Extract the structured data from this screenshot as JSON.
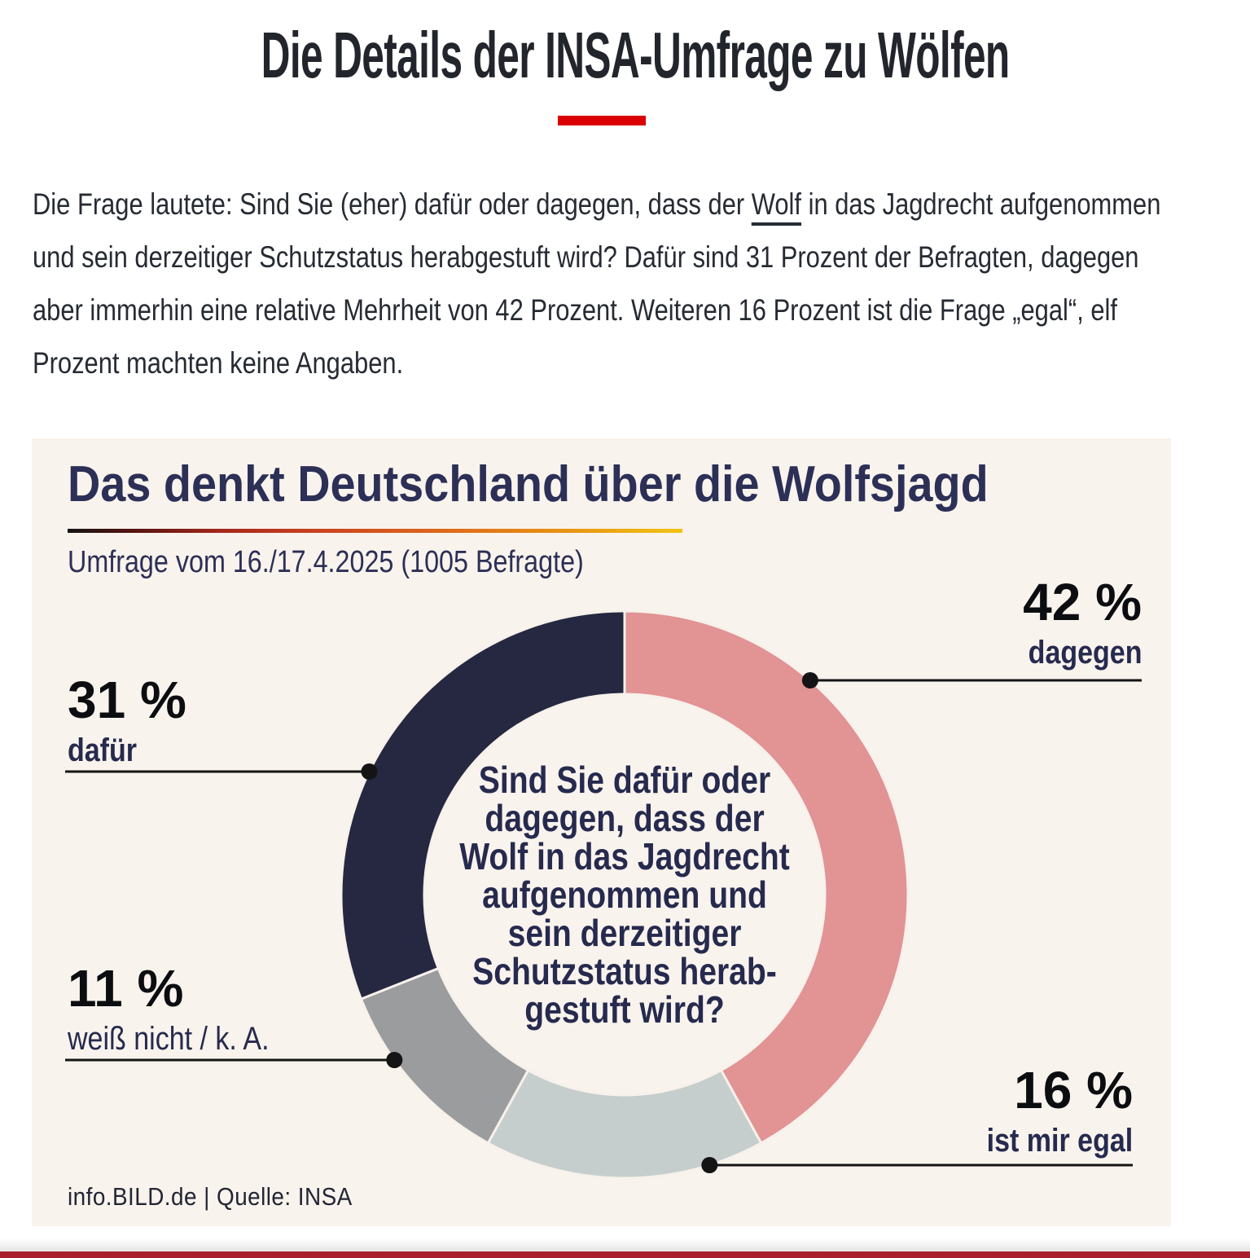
{
  "page": {
    "headline": "Die Details der INSA-Umfrage zu Wölfen",
    "accent_color": "#db0000",
    "bottom_line_color": "#a81e2d",
    "intro": {
      "text_before_link": "Die Frage lautete: Sind Sie (eher) dafür oder dagegen, dass der ",
      "link_text": "Wolf",
      "text_after_link": " in das Jagdrecht aufgenommen und sein derzeitiger Schutzstatus herabgestuft wird? Dafür sind 31 Prozent der Befragten, dagegen aber immerhin eine relative Mehrheit von 42 Prozent. Weiteren 16 Prozent ist die Frage „egal“, elf Prozent machten keine Angaben."
    }
  },
  "infographic": {
    "title": "Das denkt Deutschland über die Wolfsjagd",
    "subtitle": "Umfrage vom 16./17.4.2025 (1005 Befragte)",
    "source": "info.BILD.de | Quelle: INSA",
    "card_background": "#f9f3ed",
    "center_question_lines": [
      "Sind Sie dafür oder",
      "dagegen, dass der",
      "Wolf in das Jagdrecht",
      "aufgenommen und",
      "sein derzeitiger",
      "Schutzstatus herab-",
      "gestuft wird?"
    ]
  },
  "chart_data": {
    "type": "pie",
    "variant": "donut",
    "title": "Das denkt Deutschland über die Wolfsjagd",
    "subtitle": "Umfrage vom 16./17.4.2025 (1005 Befragte)",
    "center_label": "Sind Sie dafür oder dagegen, dass der Wolf in das Jagdrecht aufgenommen und sein derzeitiger Schutzstatus herabgestuft wird?",
    "unit": "%",
    "total": 100,
    "start_angle_deg": 0,
    "direction": "clockwise",
    "segments": [
      {
        "label": "dagegen",
        "value": 42,
        "value_label": "42 %",
        "color": "#e29394"
      },
      {
        "label": "ist mir egal",
        "value": 16,
        "value_label": "16 %",
        "color": "#c5cecd"
      },
      {
        "label": "weiß nicht / k. A.",
        "value": 11,
        "value_label": "11 %",
        "color": "#9b9c9e"
      },
      {
        "label": "dafür",
        "value": 31,
        "value_label": "31 %",
        "color": "#252840"
      }
    ],
    "source": "info.BILD.de | Quelle: INSA",
    "legend_position": "callouts"
  }
}
